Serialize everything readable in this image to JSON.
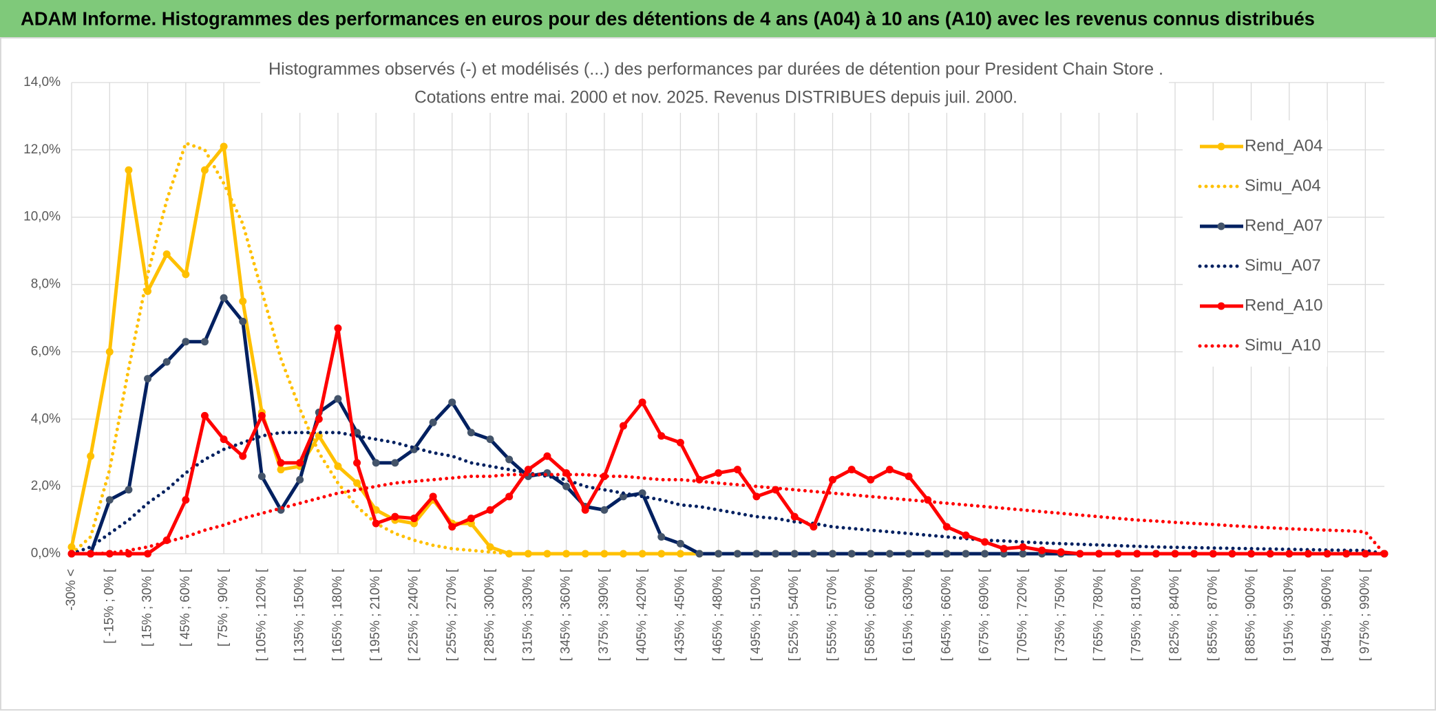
{
  "header": "ADAM Informe. Histogrammes des performances en euros pour des détentions de 4 ans (A04) à 10 ans (A10) avec les revenus connus distribués",
  "chart_data": {
    "type": "line",
    "title": "Histogrammes observés (-) et modélisés (...) des performances par durées de détention pour President Chain Store .",
    "subtitle": "Cotations entre mai. 2000 et nov. 2025. Revenus DISTRIBUES depuis juil. 2000.",
    "categories": [
      "-30% <",
      null,
      "[ -15% ; 0% [",
      null,
      "[ 15% ; 30% [",
      null,
      "[ 45% ; 60% [",
      null,
      "[ 75% ; 90% [",
      null,
      "[ 105% ; 120% [",
      null,
      "[ 135% ; 150% [",
      null,
      "[ 165% ; 180% [",
      null,
      "[ 195% ; 210% [",
      null,
      "[ 225% ; 240% [",
      null,
      "[ 255% ; 270% [",
      null,
      "[ 285% ; 300% [",
      null,
      "[ 315% ; 330% [",
      null,
      "[ 345% ; 360% [",
      null,
      "[ 375% ; 390% [",
      null,
      "[ 405% ; 420% [",
      null,
      "[ 435% ; 450% [",
      null,
      "[ 465% ; 480% [",
      null,
      "[ 495% ; 510% [",
      null,
      "[ 525% ; 540% [",
      null,
      "[ 555% ; 570% [",
      null,
      "[ 585% ; 600% [",
      null,
      "[ 615% ; 630% [",
      null,
      "[ 645% ; 660% [",
      null,
      "[ 675% ; 690% [",
      null,
      "[ 705% ; 720% [",
      null,
      "[ 735% ; 750% [",
      null,
      "[ 765% ; 780% [",
      null,
      "[ 795% ; 810% [",
      null,
      "[ 825% ; 840% [",
      null,
      "[ 855% ; 870% [",
      null,
      "[ 885% ; 900% [",
      null,
      "[ 915% ; 930% [",
      null,
      "[ 945% ; 960% [",
      null,
      "[ 975% ; 990% [",
      null
    ],
    "ylim": [
      0,
      14
    ],
    "yticks": [
      {
        "value": 0,
        "label": "0,0%"
      },
      {
        "value": 2,
        "label": "2,0%"
      },
      {
        "value": 4,
        "label": "4,0%"
      },
      {
        "value": 6,
        "label": "6,0%"
      },
      {
        "value": 8,
        "label": "8,0%"
      },
      {
        "value": 10,
        "label": "10,0%"
      },
      {
        "value": 12,
        "label": "12,0%"
      },
      {
        "value": 14,
        "label": "14,0%"
      }
    ],
    "grid": true,
    "legend": "right",
    "series": [
      {
        "name": "Rend_A04",
        "color": "#FFC000",
        "line_style": "solid",
        "markers": true,
        "values": [
          0.2,
          2.9,
          6.0,
          11.4,
          7.8,
          8.9,
          8.3,
          11.4,
          12.1,
          7.5,
          4.2,
          2.5,
          2.6,
          3.5,
          2.6,
          2.1,
          1.3,
          1.0,
          0.9,
          1.6,
          0.9,
          0.9,
          0.2,
          0,
          0,
          0,
          0,
          0,
          0,
          0,
          0,
          0,
          0,
          0,
          0,
          0,
          0,
          0,
          0,
          0,
          0,
          0,
          0,
          0,
          0,
          0,
          0,
          0,
          0,
          0,
          0,
          0,
          0,
          0,
          0,
          0,
          0,
          0,
          0,
          0,
          0,
          0,
          0,
          0,
          0,
          0,
          0,
          0,
          0,
          0
        ]
      },
      {
        "name": "Simu_A04",
        "color": "#FFC000",
        "line_style": "dotted",
        "markers": false,
        "values": [
          0,
          0.5,
          2.5,
          5.5,
          8.3,
          10.5,
          12.2,
          12.0,
          11.0,
          9.8,
          7.8,
          5.8,
          4.3,
          3.0,
          2.1,
          1.4,
          0.9,
          0.6,
          0.4,
          0.25,
          0.15,
          0.1,
          0.05,
          0,
          0,
          0,
          0,
          0,
          0,
          0,
          0,
          0,
          0,
          0,
          0,
          0,
          0,
          0,
          0,
          0,
          0,
          0,
          0,
          0,
          0,
          0,
          0,
          0,
          0,
          0,
          0,
          0,
          0,
          0,
          0,
          0,
          0,
          0,
          0,
          0,
          0,
          0,
          0,
          0,
          0,
          0,
          0,
          0,
          0,
          0
        ]
      },
      {
        "name": "Rend_A07",
        "color": "#002060",
        "marker_color": "#44546A",
        "line_style": "solid",
        "markers": true,
        "values": [
          0,
          0,
          1.6,
          1.9,
          5.2,
          5.7,
          6.3,
          6.3,
          7.6,
          6.9,
          2.3,
          1.3,
          2.2,
          4.2,
          4.6,
          3.6,
          2.7,
          2.7,
          3.1,
          3.9,
          4.5,
          3.6,
          3.4,
          2.8,
          2.3,
          2.4,
          2.0,
          1.4,
          1.3,
          1.7,
          1.8,
          0.5,
          0.3,
          0,
          0,
          0,
          0,
          0,
          0,
          0,
          0,
          0,
          0,
          0,
          0,
          0,
          0,
          0,
          0,
          0,
          0,
          0,
          0,
          0,
          0,
          0,
          0,
          0,
          0,
          0,
          0,
          0,
          0,
          0,
          0,
          0,
          0,
          0,
          0,
          0
        ]
      },
      {
        "name": "Simu_A07",
        "color": "#002060",
        "line_style": "dotted",
        "markers": false,
        "values": [
          0,
          0.2,
          0.6,
          1.0,
          1.5,
          1.9,
          2.4,
          2.8,
          3.1,
          3.3,
          3.5,
          3.6,
          3.6,
          3.6,
          3.6,
          3.5,
          3.4,
          3.3,
          3.15,
          3.0,
          2.9,
          2.7,
          2.6,
          2.5,
          2.4,
          2.3,
          2.2,
          2.0,
          1.9,
          1.8,
          1.7,
          1.6,
          1.45,
          1.4,
          1.3,
          1.2,
          1.1,
          1.05,
          0.95,
          0.9,
          0.8,
          0.75,
          0.7,
          0.65,
          0.6,
          0.55,
          0.5,
          0.45,
          0.4,
          0.38,
          0.35,
          0.32,
          0.3,
          0.28,
          0.26,
          0.24,
          0.22,
          0.2,
          0.19,
          0.18,
          0.17,
          0.16,
          0.15,
          0.14,
          0.13,
          0.12,
          0.11,
          0.1,
          0.1,
          0
        ]
      },
      {
        "name": "Rend_A10",
        "color": "#FF0000",
        "line_style": "solid",
        "markers": true,
        "values": [
          0,
          0,
          0,
          0,
          0,
          0.4,
          1.6,
          4.1,
          3.4,
          2.9,
          4.1,
          2.7,
          2.7,
          4.0,
          6.7,
          2.7,
          0.9,
          1.1,
          1.05,
          1.7,
          0.8,
          1.05,
          1.3,
          1.7,
          2.5,
          2.9,
          2.4,
          1.3,
          2.3,
          3.8,
          4.5,
          3.5,
          3.3,
          2.2,
          2.4,
          2.5,
          1.7,
          1.9,
          1.1,
          0.8,
          2.2,
          2.5,
          2.2,
          2.5,
          2.3,
          1.6,
          0.8,
          0.55,
          0.35,
          0.15,
          0.2,
          0.1,
          0.05,
          0,
          0,
          0,
          0,
          0,
          0,
          0,
          0,
          0,
          0,
          0,
          0,
          0,
          0,
          0,
          0,
          0
        ]
      },
      {
        "name": "Simu_A10",
        "color": "#FF0000",
        "line_style": "dotted",
        "markers": false,
        "values": [
          0,
          0,
          0.02,
          0.1,
          0.2,
          0.35,
          0.5,
          0.7,
          0.85,
          1.05,
          1.2,
          1.35,
          1.5,
          1.65,
          1.8,
          1.9,
          2.0,
          2.1,
          2.15,
          2.2,
          2.25,
          2.3,
          2.3,
          2.35,
          2.35,
          2.35,
          2.35,
          2.35,
          2.3,
          2.3,
          2.25,
          2.2,
          2.2,
          2.15,
          2.1,
          2.05,
          2.0,
          1.95,
          1.9,
          1.85,
          1.8,
          1.75,
          1.7,
          1.65,
          1.6,
          1.55,
          1.5,
          1.45,
          1.4,
          1.35,
          1.3,
          1.25,
          1.2,
          1.15,
          1.1,
          1.05,
          1.0,
          0.97,
          0.93,
          0.9,
          0.87,
          0.83,
          0.8,
          0.77,
          0.74,
          0.72,
          0.7,
          0.68,
          0.65,
          0
        ]
      }
    ]
  }
}
